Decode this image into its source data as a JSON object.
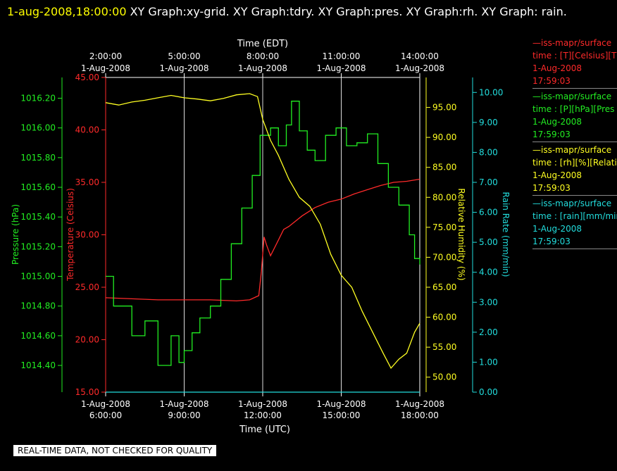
{
  "header": {
    "date": "1-aug-2008,18:00:00",
    "text": "XY Graph:xy-grid.  XY Graph:tdry.  XY Graph:pres.  XY Graph:rh.  XY Graph: rain."
  },
  "legend": [
    {
      "line1": "—iss-mapr/surface",
      "line2": "time : [T][Celsius][T",
      "line3": "1-Aug-2008",
      "line4": "17:59:03",
      "color": "#ff2a2a"
    },
    {
      "line1": "—iss-mapr/surface",
      "line2": "time : [P][hPa][Pres",
      "line3": "1-Aug-2008",
      "line4": "17:59:03",
      "color": "#22ee22"
    },
    {
      "line1": "—iss-mapr/surface",
      "line2": "time : [rh][%][Relati",
      "line3": "1-Aug-2008",
      "line4": "17:59:03",
      "color": "#ffff22"
    },
    {
      "line1": "—iss-mapr/surface",
      "line2": "time : [rain][mm/min",
      "line3": "1-Aug-2008",
      "line4": "17:59:03",
      "color": "#22dddd"
    }
  ],
  "footer": {
    "quality": "REAL-TIME DATA, NOT CHECKED FOR QUALITY"
  },
  "chart_data": {
    "type": "line",
    "top_axis": {
      "label": "Time (EDT)",
      "ticks": [
        {
          "t": "2:00:00",
          "d": "1-Aug-2008"
        },
        {
          "t": "5:00:00",
          "d": "1-Aug-2008"
        },
        {
          "t": "8:00:00",
          "d": "1-Aug-2008"
        },
        {
          "t": "11:00:00",
          "d": "1-Aug-2008"
        },
        {
          "t": "14:00:00",
          "d": "1-Aug-2008"
        }
      ]
    },
    "bottom_axis": {
      "label": "Time (UTC)",
      "range_hours": [
        6,
        18
      ],
      "ticks": [
        {
          "t": "6:00:00",
          "d": "1-Aug-2008"
        },
        {
          "t": "9:00:00",
          "d": "1-Aug-2008"
        },
        {
          "t": "12:00:00",
          "d": "1-Aug-2008"
        },
        {
          "t": "15:00:00",
          "d": "1-Aug-2008"
        },
        {
          "t": "18:00:00",
          "d": "1-Aug-2008"
        }
      ]
    },
    "grid": true,
    "axes": {
      "temperature": {
        "label": "Temperature (Celsius)",
        "range": [
          15,
          45
        ],
        "ticks": [
          "15.00",
          "20.00",
          "25.00",
          "30.00",
          "35.00",
          "40.00",
          "45.00"
        ],
        "color": "#ff2a2a"
      },
      "pressure": {
        "label": "Pressure (hPa)",
        "range": [
          1014.22,
          1016.34
        ],
        "ticks": [
          "1014.40",
          "1014.60",
          "1014.80",
          "1015.00",
          "1015.20",
          "1015.40",
          "1015.60",
          "1015.80",
          "1016.00",
          "1016.20"
        ],
        "color": "#22ee22"
      },
      "rh": {
        "label": "Relative Humidity (%)",
        "range": [
          47.5,
          100
        ],
        "ticks": [
          "50.00",
          "55.00",
          "60.00",
          "65.00",
          "70.00",
          "75.00",
          "80.00",
          "85.00",
          "90.00",
          "95.00"
        ],
        "color": "#ffff22"
      },
      "rain": {
        "label": "Rain Rate (mm/min)",
        "range": [
          0,
          10.5
        ],
        "ticks": [
          "0.00",
          "1.00",
          "2.00",
          "3.00",
          "4.00",
          "5.00",
          "6.00",
          "7.00",
          "8.00",
          "9.00",
          "10.00"
        ],
        "color": "#22dddd"
      }
    },
    "series": [
      {
        "axis": "temperature",
        "color": "#ff2a2a",
        "x": [
          6.0,
          7.0,
          8.0,
          9.0,
          10.0,
          11.0,
          11.5,
          11.85,
          11.95,
          12.05,
          12.15,
          12.3,
          12.6,
          12.8,
          13.0,
          13.5,
          14.0,
          14.5,
          15.0,
          15.5,
          16.0,
          16.5,
          17.0,
          17.5,
          18.0
        ],
        "y": [
          24.0,
          23.9,
          23.8,
          23.8,
          23.8,
          23.7,
          23.8,
          24.2,
          26.5,
          29.8,
          29.0,
          28.0,
          29.5,
          30.5,
          30.8,
          31.8,
          32.6,
          33.1,
          33.4,
          33.9,
          34.3,
          34.7,
          35.0,
          35.1,
          35.3
        ]
      },
      {
        "axis": "pressure",
        "color": "#22ee22",
        "x": [
          6.0,
          6.3,
          7.0,
          7.5,
          8.0,
          8.5,
          8.8,
          9.0,
          9.3,
          9.6,
          10.0,
          10.4,
          10.8,
          11.2,
          11.6,
          11.9,
          12.3,
          12.6,
          12.9,
          13.1,
          13.4,
          13.7,
          14.0,
          14.4,
          14.8,
          15.2,
          15.6,
          16.0,
          16.4,
          16.8,
          17.2,
          17.6,
          17.8,
          18.0
        ],
        "y": [
          1015.0,
          1014.8,
          1014.6,
          1014.7,
          1014.4,
          1014.6,
          1014.42,
          1014.5,
          1014.62,
          1014.72,
          1014.8,
          1014.98,
          1015.22,
          1015.46,
          1015.68,
          1015.95,
          1016.0,
          1015.88,
          1016.02,
          1016.18,
          1015.98,
          1015.85,
          1015.78,
          1015.95,
          1016.0,
          1015.88,
          1015.9,
          1015.96,
          1015.76,
          1015.6,
          1015.48,
          1015.28,
          1015.12,
          1015.08
        ]
      },
      {
        "axis": "rh",
        "color": "#ffff22",
        "x": [
          6.0,
          6.5,
          7.0,
          7.5,
          8.0,
          8.5,
          9.0,
          9.5,
          10.0,
          10.5,
          11.0,
          11.5,
          11.8,
          12.0,
          12.3,
          12.6,
          13.0,
          13.4,
          13.8,
          14.2,
          14.6,
          15.0,
          15.4,
          15.8,
          16.2,
          16.6,
          16.9,
          17.2,
          17.5,
          17.8,
          18.0
        ],
        "y": [
          95.8,
          95.4,
          95.9,
          96.2,
          96.6,
          97.0,
          96.6,
          96.4,
          96.1,
          96.5,
          97.1,
          97.3,
          96.8,
          93.0,
          89.5,
          87.0,
          83.0,
          80.0,
          78.5,
          75.5,
          70.5,
          67.0,
          65.0,
          61.0,
          57.5,
          54.0,
          51.5,
          53.0,
          54.0,
          57.5,
          59.0
        ]
      },
      {
        "axis": "rain",
        "color": "#22dddd",
        "x": [
          6.0,
          18.0
        ],
        "y": [
          0.0,
          0.0
        ]
      }
    ]
  }
}
